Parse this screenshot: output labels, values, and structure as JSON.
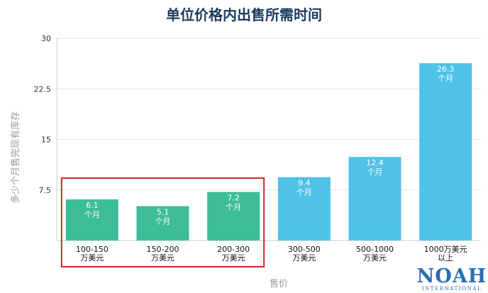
{
  "chart_data": {
    "type": "bar",
    "title": "单位价格内出售所需时间",
    "xlabel": "售价",
    "ylabel": "多少个月售完现有库存",
    "ylim": [
      0,
      30
    ],
    "yticks": [
      "7.5",
      "15",
      "22.5",
      "30"
    ],
    "grid": true,
    "categories": [
      [
        "100-150",
        "万美元"
      ],
      [
        "150-200",
        "万美元"
      ],
      [
        "200-300",
        "万美元"
      ],
      [
        "300-500",
        "万美元"
      ],
      [
        "500-1000",
        "万美元"
      ],
      [
        "1000万美元",
        "以上"
      ]
    ],
    "values": [
      6.1,
      5.1,
      7.2,
      9.4,
      12.4,
      26.3
    ],
    "value_unit": "个月",
    "bar_colors": [
      "#3dbd97",
      "#3dbd97",
      "#3dbd97",
      "#4fc2e8",
      "#4fc2e8",
      "#4fc2e8"
    ],
    "highlight": {
      "range": [
        0,
        2
      ],
      "color": "#e02020"
    }
  },
  "logo": {
    "main": "NOAH",
    "sub": "INTERNATIONAL"
  }
}
